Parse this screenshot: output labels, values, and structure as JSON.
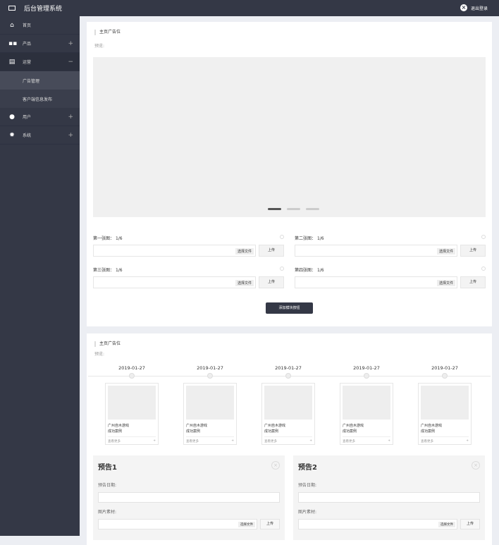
{
  "header": {
    "title": "后台管理系统",
    "logout": "退出登录"
  },
  "sidebar": {
    "items": [
      {
        "label": "首页",
        "icon": "home-icon"
      },
      {
        "label": "产品",
        "icon": "grid-icon",
        "toggle": "+"
      },
      {
        "label": "运营",
        "icon": "document-icon",
        "toggle": "−",
        "children": [
          "广告管理",
          "客户端信息发布"
        ]
      },
      {
        "label": "用户",
        "icon": "user-icon",
        "toggle": "+"
      },
      {
        "label": "系统",
        "icon": "gear-icon",
        "toggle": "+"
      }
    ]
  },
  "panel1": {
    "title": "主页广告位",
    "preview_label": "预览:",
    "carousel_active_index": 0,
    "fields": [
      {
        "label": "第一张图：",
        "count": "1/6"
      },
      {
        "label": "第二张图：",
        "count": "1/6"
      },
      {
        "label": "第三张图：",
        "count": "1/6"
      },
      {
        "label": "第四张图：",
        "count": "1/6"
      }
    ],
    "choose_file": "选择文件",
    "upload": "上传",
    "add_button": "添加模块按钮"
  },
  "panel2": {
    "title": "主页广告位",
    "preview_label": "预览:",
    "timeline": [
      {
        "date": "2019-01-27",
        "line1": "广州自木游戏",
        "line2": "成功案例",
        "more": "查看更多"
      },
      {
        "date": "2019-01-27",
        "line1": "广州自木游戏",
        "line2": "成功案例",
        "more": "查看更多"
      },
      {
        "date": "2019-01-27",
        "line1": "广州自木游戏",
        "line2": "成功案例",
        "more": "查看更多"
      },
      {
        "date": "2019-01-27",
        "line1": "广州自木游戏",
        "line2": "成功案例",
        "more": "查看更多"
      },
      {
        "date": "2019-01-27",
        "line1": "广州自木游戏",
        "line2": "成功案例",
        "more": "查看更多"
      }
    ],
    "forms": [
      {
        "title": "预告1",
        "date_label": "预告日期:",
        "image_label": "图片素材:"
      },
      {
        "title": "预告2",
        "date_label": "预告日期:",
        "image_label": "图片素材:"
      }
    ],
    "choose_file": "选择文件",
    "upload": "上传"
  }
}
